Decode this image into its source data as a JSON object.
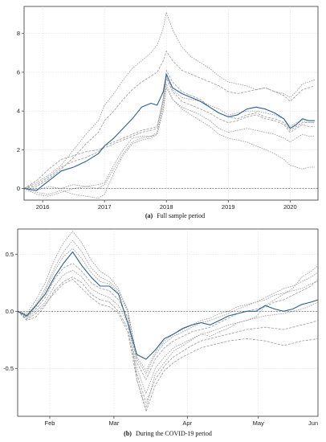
{
  "chart_data": [
    {
      "type": "line",
      "caption_letter": "(a)",
      "caption_text": "Full sample period",
      "xlim": [
        2015.7,
        2020.45
      ],
      "ylim": [
        -0.6,
        9.4
      ],
      "x_ticks": [
        2016,
        2017,
        2018,
        2019,
        2020
      ],
      "x_tick_labels": [
        "2016",
        "2017",
        "2018",
        "2019",
        "2020"
      ],
      "y_ticks": [
        0,
        2,
        4,
        6,
        8
      ],
      "y_tick_labels": [
        "0",
        "2",
        "4",
        "6",
        "8"
      ],
      "reference_line": 0,
      "grid": true,
      "highlight_color": "#2a5f8f",
      "other_color": "#9a9a9a",
      "highlight_series": {
        "x": [
          2015.7,
          2015.9,
          2016.1,
          2016.3,
          2016.5,
          2016.7,
          2016.9,
          2017.0,
          2017.15,
          2017.3,
          2017.45,
          2017.6,
          2017.75,
          2017.85,
          2017.95,
          2018.0,
          2018.1,
          2018.25,
          2018.4,
          2018.55,
          2018.7,
          2018.85,
          2019.0,
          2019.15,
          2019.3,
          2019.45,
          2019.6,
          2019.75,
          2019.9,
          2020.0,
          2020.1,
          2020.2,
          2020.3,
          2020.4
        ],
        "y": [
          0.0,
          -0.1,
          0.4,
          0.9,
          1.1,
          1.4,
          1.8,
          2.2,
          2.6,
          3.1,
          3.6,
          4.2,
          4.4,
          4.3,
          5.0,
          5.9,
          5.2,
          4.9,
          4.7,
          4.5,
          4.2,
          3.9,
          3.7,
          3.8,
          4.1,
          4.2,
          4.1,
          3.9,
          3.6,
          3.1,
          3.3,
          3.6,
          3.5,
          3.5
        ]
      },
      "other_series": [
        {
          "y": [
            0.0,
            0.3,
            0.7,
            1.2,
            2.0,
            2.8,
            3.5,
            4.3,
            4.9,
            5.6,
            6.2,
            6.6,
            7.0,
            7.4,
            8.3,
            9.1,
            8.2,
            7.3,
            6.8,
            6.5,
            6.2,
            5.8,
            5.5,
            5.4,
            5.3,
            5.1,
            5.2,
            5.0,
            4.9,
            4.7,
            5.0,
            5.4,
            5.5,
            5.6
          ]
        },
        {
          "y": [
            0.0,
            0.1,
            0.5,
            1.0,
            1.6,
            2.3,
            2.9,
            3.5,
            4.0,
            4.6,
            5.1,
            5.5,
            5.8,
            6.0,
            6.6,
            7.1,
            6.6,
            6.1,
            5.9,
            5.7,
            5.5,
            5.3,
            5.0,
            4.9,
            5.0,
            5.1,
            5.2,
            5.0,
            4.8,
            4.5,
            4.8,
            5.1,
            5.2,
            5.3
          ]
        },
        {
          "y": [
            0.0,
            -0.3,
            -0.4,
            -0.2,
            0.0,
            0.1,
            0.2,
            0.3,
            1.2,
            2.0,
            2.6,
            2.7,
            2.7,
            2.8,
            4.5,
            5.8,
            5.1,
            4.7,
            4.6,
            4.5,
            4.3,
            4.1,
            3.8,
            3.9,
            4.0,
            4.0,
            3.9,
            3.8,
            3.6,
            3.2,
            3.4,
            3.5,
            3.4,
            3.4
          ]
        },
        {
          "y": [
            0.0,
            0.4,
            1.0,
            1.5,
            1.7,
            1.9,
            2.0,
            2.1,
            2.3,
            2.5,
            2.7,
            2.9,
            3.0,
            3.1,
            4.7,
            6.1,
            5.5,
            5.0,
            4.8,
            4.6,
            4.2,
            3.9,
            3.7,
            3.6,
            3.8,
            3.9,
            3.7,
            3.6,
            3.4,
            3.0,
            3.2,
            3.4,
            3.4,
            3.4
          ]
        },
        {
          "y": [
            0.0,
            -0.2,
            -0.3,
            -0.1,
            -0.3,
            -0.4,
            -0.5,
            -0.3,
            0.8,
            1.7,
            2.3,
            2.5,
            2.6,
            2.8,
            4.0,
            5.2,
            4.6,
            4.2,
            4.0,
            3.8,
            3.5,
            3.1,
            2.9,
            3.0,
            3.1,
            3.0,
            2.9,
            2.8,
            2.6,
            2.4,
            2.6,
            2.8,
            2.7,
            2.7
          ]
        },
        {
          "y": [
            0.0,
            0.2,
            0.6,
            1.1,
            1.4,
            1.6,
            1.9,
            2.2,
            2.4,
            2.6,
            2.8,
            3.0,
            3.1,
            3.2,
            4.6,
            5.7,
            5.0,
            4.5,
            4.3,
            4.1,
            3.9,
            3.6,
            3.4,
            3.5,
            3.7,
            3.8,
            3.6,
            3.5,
            3.3,
            2.9,
            3.1,
            3.3,
            3.2,
            3.2
          ]
        },
        {
          "y": [
            0.0,
            -0.1,
            0.1,
            0.0,
            0.2,
            0.1,
            0.0,
            0.2,
            1.0,
            1.8,
            2.4,
            2.6,
            2.7,
            2.9,
            4.2,
            5.4,
            4.6,
            4.1,
            3.8,
            3.5,
            3.2,
            2.8,
            2.6,
            2.5,
            2.4,
            2.2,
            2.0,
            1.8,
            1.5,
            1.2,
            1.1,
            1.0,
            1.1,
            1.1
          ]
        }
      ]
    },
    {
      "type": "line",
      "caption_letter": "(b)",
      "caption_text": "During the COVID-19 period",
      "xlim": [
        0,
        131
      ],
      "ylim": [
        -0.92,
        0.72
      ],
      "x_ticks": [
        14,
        42,
        74,
        105,
        135
      ],
      "x_tick_labels": [
        "Feb",
        "Mar",
        "Apr",
        "May",
        "Jun"
      ],
      "y_ticks": [
        0.5,
        0.0,
        -0.5
      ],
      "y_tick_labels": [
        "0.5",
        "0.0",
        "-0.5"
      ],
      "reference_line": 0,
      "grid": true,
      "highlight_color": "#2a5f8f",
      "other_color": "#9a9a9a",
      "highlight_series": {
        "x": [
          0,
          4,
          8,
          12,
          16,
          20,
          24,
          28,
          32,
          36,
          40,
          44,
          48,
          52,
          56,
          60,
          64,
          68,
          72,
          76,
          80,
          84,
          88,
          92,
          96,
          100,
          104,
          108,
          112,
          116,
          120,
          124,
          128,
          131
        ],
        "y": [
          0.0,
          -0.04,
          0.05,
          0.15,
          0.3,
          0.42,
          0.52,
          0.4,
          0.3,
          0.22,
          0.22,
          0.15,
          -0.1,
          -0.38,
          -0.42,
          -0.34,
          -0.24,
          -0.2,
          -0.15,
          -0.12,
          -0.1,
          -0.12,
          -0.08,
          -0.04,
          -0.02,
          0.0,
          0.0,
          0.05,
          0.02,
          0.0,
          0.02,
          0.06,
          0.08,
          0.1
        ]
      },
      "other_series": [
        {
          "y": [
            0.0,
            -0.02,
            0.1,
            0.25,
            0.45,
            0.6,
            0.7,
            0.6,
            0.45,
            0.35,
            0.3,
            0.2,
            0.0,
            -0.6,
            -0.85,
            -0.55,
            -0.45,
            -0.35,
            -0.3,
            -0.25,
            -0.2,
            -0.22,
            -0.18,
            -0.15,
            -0.1,
            -0.08,
            -0.05,
            0.05,
            0.1,
            0.15,
            0.2,
            0.3,
            0.35,
            0.4
          ]
        },
        {
          "y": [
            0.0,
            -0.05,
            0.02,
            0.12,
            0.28,
            0.38,
            0.42,
            0.35,
            0.25,
            0.2,
            0.18,
            0.1,
            -0.05,
            -0.45,
            -0.6,
            -0.42,
            -0.32,
            -0.26,
            -0.22,
            -0.18,
            -0.16,
            -0.14,
            -0.1,
            -0.06,
            -0.02,
            0.0,
            0.02,
            0.04,
            0.08,
            0.1,
            0.14,
            0.18,
            0.22,
            0.28
          ]
        },
        {
          "y": [
            0.0,
            -0.06,
            0.0,
            0.08,
            0.22,
            0.32,
            0.36,
            0.3,
            0.2,
            0.15,
            0.12,
            0.05,
            -0.1,
            -0.5,
            -0.72,
            -0.5,
            -0.4,
            -0.32,
            -0.28,
            -0.24,
            -0.2,
            -0.18,
            -0.15,
            -0.12,
            -0.1,
            -0.08,
            -0.06,
            -0.04,
            -0.03,
            -0.02,
            0.0,
            0.02,
            0.05,
            0.08
          ]
        },
        {
          "y": [
            0.0,
            -0.08,
            -0.05,
            0.05,
            0.18,
            0.26,
            0.3,
            0.25,
            0.15,
            0.1,
            0.08,
            0.0,
            -0.15,
            -0.55,
            -0.8,
            -0.6,
            -0.48,
            -0.4,
            -0.35,
            -0.3,
            -0.26,
            -0.24,
            -0.22,
            -0.2,
            -0.18,
            -0.16,
            -0.15,
            -0.14,
            -0.15,
            -0.16,
            -0.14,
            -0.12,
            -0.1,
            -0.08
          ]
        },
        {
          "y": [
            0.0,
            -0.05,
            0.04,
            0.18,
            0.35,
            0.48,
            0.55,
            0.46,
            0.34,
            0.26,
            0.24,
            0.16,
            0.0,
            -0.42,
            -0.55,
            -0.38,
            -0.28,
            -0.22,
            -0.18,
            -0.14,
            -0.1,
            -0.08,
            -0.05,
            -0.02,
            0.02,
            0.05,
            0.08,
            0.12,
            0.16,
            0.2,
            0.22,
            0.26,
            0.3,
            0.34
          ]
        },
        {
          "y": [
            0.0,
            -0.07,
            -0.02,
            0.06,
            0.16,
            0.24,
            0.28,
            0.2,
            0.12,
            0.06,
            0.04,
            -0.02,
            -0.18,
            -0.6,
            -0.88,
            -0.65,
            -0.52,
            -0.45,
            -0.4,
            -0.36,
            -0.32,
            -0.3,
            -0.28,
            -0.26,
            -0.25,
            -0.24,
            -0.25,
            -0.26,
            -0.28,
            -0.3,
            -0.28,
            -0.26,
            -0.25,
            -0.24
          ]
        },
        {
          "y": [
            0.0,
            -0.03,
            0.06,
            0.2,
            0.38,
            0.52,
            0.62,
            0.52,
            0.38,
            0.3,
            0.26,
            0.18,
            0.02,
            -0.4,
            -0.52,
            -0.36,
            -0.26,
            -0.2,
            -0.16,
            -0.12,
            -0.08,
            -0.06,
            -0.02,
            0.0,
            0.04,
            0.06,
            0.08,
            0.1,
            0.14,
            0.16,
            0.18,
            0.2,
            0.24,
            0.26
          ]
        }
      ]
    }
  ]
}
